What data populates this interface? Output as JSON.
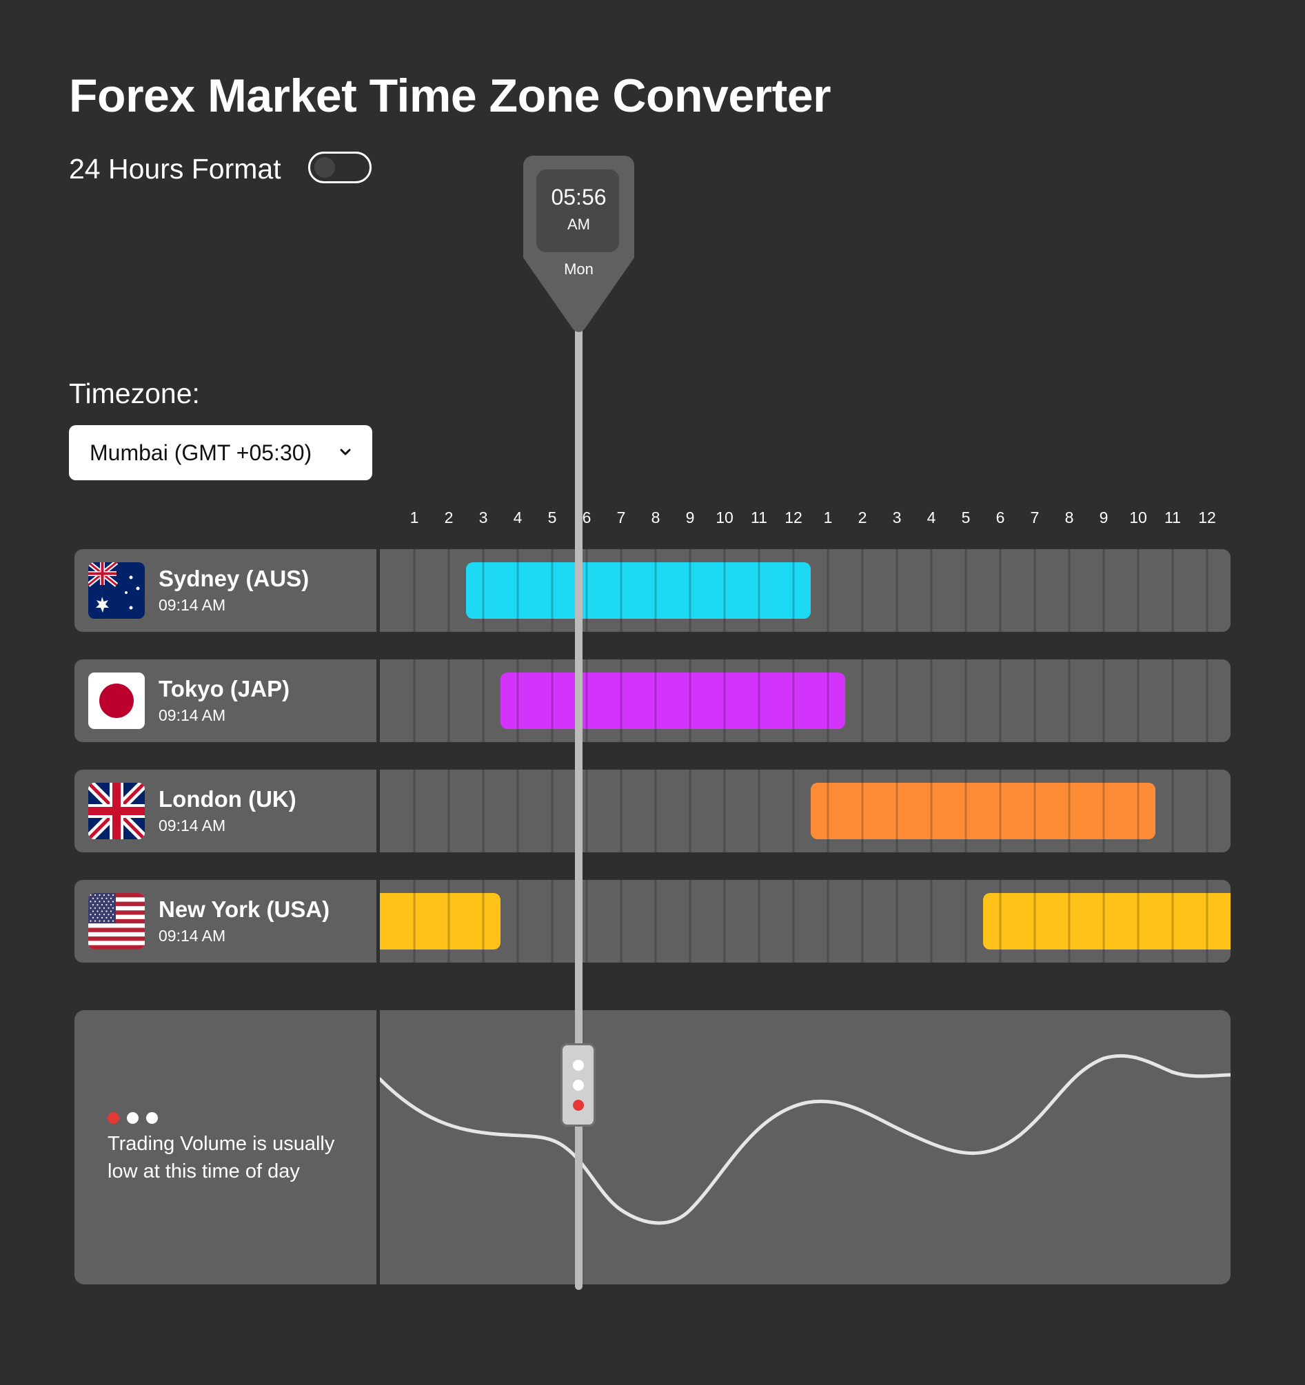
{
  "app": {
    "title": "Forex Market Time Zone Converter"
  },
  "format_toggle": {
    "label": "24 Hours Format",
    "enabled": false
  },
  "timezone": {
    "label": "Timezone:",
    "selected": "Mumbai (GMT +05:30)",
    "icon": "chevron-down-icon"
  },
  "hour_labels": [
    "1",
    "2",
    "3",
    "4",
    "5",
    "6",
    "7",
    "8",
    "9",
    "10",
    "11",
    "12",
    "1",
    "2",
    "3",
    "4",
    "5",
    "6",
    "7",
    "8",
    "9",
    "10",
    "11",
    "12"
  ],
  "indicator": {
    "time": "05:56",
    "ampm": "AM",
    "day": "Mon",
    "position_hour": 5.93
  },
  "markets": [
    {
      "city": "Sydney (AUS)",
      "time": "09:14 AM",
      "flag": "australia-flag-icon",
      "color": "#1ed9f4",
      "sessions": [
        {
          "start": 2.5,
          "end": 12.5
        }
      ]
    },
    {
      "city": "Tokyo (JAP)",
      "time": "09:14 AM",
      "flag": "japan-flag-icon",
      "color": "#d334fb",
      "sessions": [
        {
          "start": 3.5,
          "end": 13.5
        }
      ]
    },
    {
      "city": "London (UK)",
      "time": "09:14 AM",
      "flag": "uk-flag-icon",
      "color": "#fe8c37",
      "sessions": [
        {
          "start": 12.5,
          "end": 22.5
        }
      ]
    },
    {
      "city": "New York (USA)",
      "time": "09:14 AM",
      "flag": "usa-flag-icon",
      "color": "#fec218",
      "sessions": [
        {
          "start": 0,
          "end": 3.5
        },
        {
          "start": 17.5,
          "end": 24.7
        }
      ]
    }
  ],
  "volume": {
    "message": "Trading Volume is usually low at this time of day",
    "status_colors": [
      "#e53935",
      "#ffffff",
      "#ffffff"
    ],
    "handle_colors": [
      "#ffffff",
      "#ffffff",
      "#e53935"
    ],
    "curve_color": "#e6e6e6"
  }
}
